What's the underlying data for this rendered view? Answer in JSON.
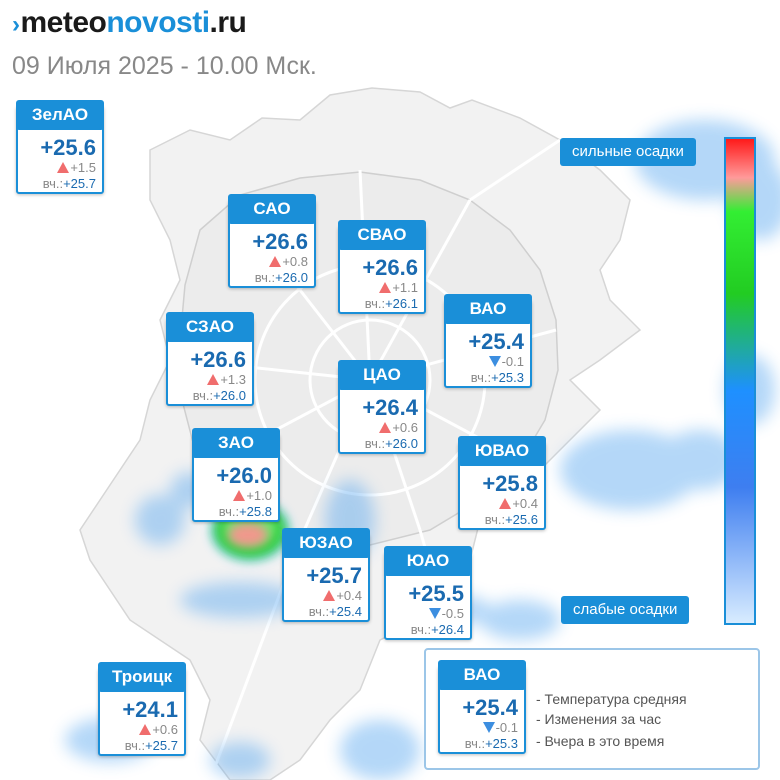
{
  "logo": {
    "prefix": "meteo",
    "accent": "novosti",
    "suffix": ".ru"
  },
  "date_line": "09 Июля 2025 - 10.00 Мск.",
  "districts": [
    {
      "id": "zelao",
      "name": "ЗелАО",
      "temp": "+25.6",
      "delta": "+1.5",
      "delta_dir": "up",
      "yesterday_label": "вч.:",
      "yesterday": "+25.7"
    },
    {
      "id": "sao",
      "name": "САО",
      "temp": "+26.6",
      "delta": "+0.8",
      "delta_dir": "up",
      "yesterday_label": "вч.:",
      "yesterday": "+26.0"
    },
    {
      "id": "svao",
      "name": "СВАО",
      "temp": "+26.6",
      "delta": "+1.1",
      "delta_dir": "up",
      "yesterday_label": "вч.:",
      "yesterday": "+26.1"
    },
    {
      "id": "vao",
      "name": "ВАО",
      "temp": "+25.4",
      "delta": "-0.1",
      "delta_dir": "down",
      "yesterday_label": "вч.:",
      "yesterday": "+25.3"
    },
    {
      "id": "szao",
      "name": "СЗАО",
      "temp": "+26.6",
      "delta": "+1.3",
      "delta_dir": "up",
      "yesterday_label": "вч.:",
      "yesterday": "+26.0"
    },
    {
      "id": "cao",
      "name": "ЦАО",
      "temp": "+26.4",
      "delta": "+0.6",
      "delta_dir": "up",
      "yesterday_label": "вч.:",
      "yesterday": "+26.0"
    },
    {
      "id": "zao",
      "name": "ЗАО",
      "temp": "+26.0",
      "delta": "+1.0",
      "delta_dir": "up",
      "yesterday_label": "вч.:",
      "yesterday": "+25.8"
    },
    {
      "id": "yuvao",
      "name": "ЮВАО",
      "temp": "+25.8",
      "delta": "+0.4",
      "delta_dir": "up",
      "yesterday_label": "вч.:",
      "yesterday": "+25.6"
    },
    {
      "id": "yuzao",
      "name": "ЮЗАО",
      "temp": "+25.7",
      "delta": "+0.4",
      "delta_dir": "up",
      "yesterday_label": "вч.:",
      "yesterday": "+25.4"
    },
    {
      "id": "yuao",
      "name": "ЮАО",
      "temp": "+25.5",
      "delta": "-0.5",
      "delta_dir": "down",
      "yesterday_label": "вч.:",
      "yesterday": "+26.4"
    },
    {
      "id": "troitsk",
      "name": "Троицк",
      "temp": "+24.1",
      "delta": "+0.6",
      "delta_dir": "up",
      "yesterday_label": "вч.:",
      "yesterday": "+25.7"
    }
  ],
  "scale": {
    "top_label": "сильные осадки",
    "bottom_label": "слабые осадки"
  },
  "legend": {
    "sample": {
      "name": "ВАО",
      "temp": "+25.4",
      "delta": "-0.1",
      "delta_dir": "down",
      "yesterday_label": "вч.:",
      "yesterday": "+25.3"
    },
    "items": [
      "- Температура средняя",
      "- Изменения за час",
      "- Вчера в это время"
    ]
  },
  "colors": {
    "accent": "#1a8fd8",
    "temp_text": "#1a6ab0",
    "up_arrow": "#f06d6d",
    "down_arrow": "#3c8ee0"
  }
}
